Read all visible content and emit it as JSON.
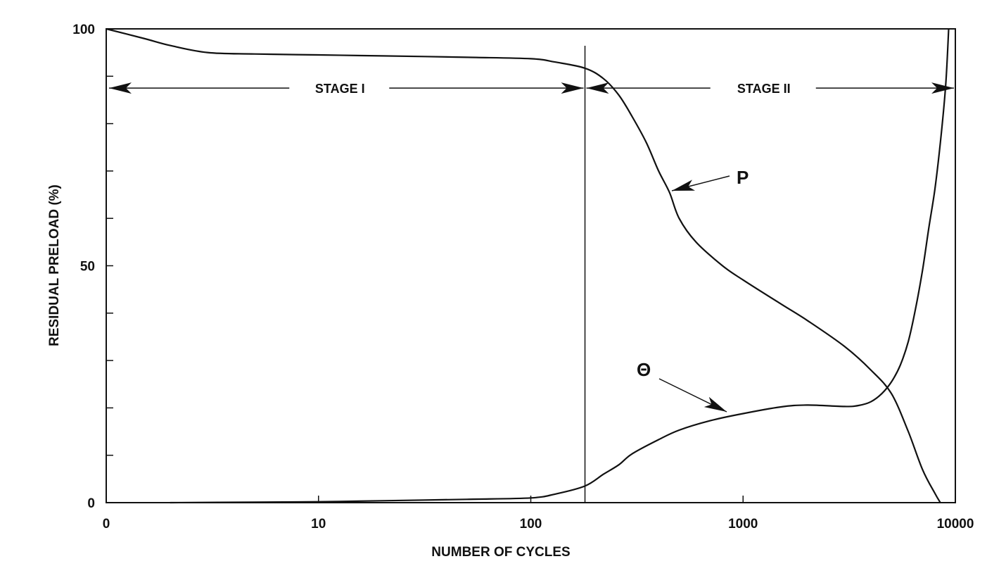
{
  "chart_data": {
    "type": "line",
    "xlabel": "NUMBER OF CYCLES",
    "ylabel": "RESIDUAL PRELOAD (%)",
    "x_scale": "log",
    "x_tick_labels": [
      "0",
      "10",
      "100",
      "1000",
      "10000"
    ],
    "x_tick_values": [
      1,
      10,
      100,
      1000,
      10000
    ],
    "y_tick_labels": [
      "0",
      "50",
      "100"
    ],
    "y_tick_values": [
      0,
      50,
      100
    ],
    "xlim": [
      1,
      10000
    ],
    "ylim": [
      0,
      100
    ],
    "grid": false,
    "series": [
      {
        "name": "P",
        "x": [
          1,
          1.5,
          2,
          3,
          5,
          10,
          20,
          50,
          100,
          130,
          180,
          220,
          260,
          300,
          350,
          400,
          450,
          500,
          600,
          800,
          1000,
          1500,
          2000,
          3000,
          4000,
          5000,
          6000,
          7000,
          8000,
          8500
        ],
        "y": [
          100,
          98,
          96.5,
          95,
          94.7,
          94.5,
          94.3,
          94,
          93.7,
          93,
          91.7,
          89.5,
          86,
          81.5,
          76,
          70,
          65.5,
          60,
          55,
          50,
          47,
          42,
          38.5,
          33,
          28,
          23,
          15,
          7,
          2,
          0
        ]
      },
      {
        "name": "Θ",
        "x": [
          2,
          5,
          10,
          20,
          50,
          100,
          130,
          180,
          220,
          260,
          300,
          400,
          500,
          700,
          1000,
          1500,
          2000,
          3000,
          3500,
          4000,
          4500,
          5000,
          5500,
          6000,
          6500,
          7000,
          7500,
          8000,
          8500,
          9000,
          9300
        ],
        "y": [
          0,
          0.1,
          0.2,
          0.4,
          0.7,
          1,
          1.8,
          3.5,
          6,
          8,
          10.3,
          13.3,
          15.3,
          17.3,
          18.8,
          20.2,
          20.6,
          20.3,
          20.5,
          21.3,
          23,
          25.5,
          29,
          34,
          41,
          49,
          58,
          66,
          76,
          88,
          100
        ]
      }
    ],
    "divider_x": 180,
    "stage_arrow_y": 87.5,
    "annotations": [
      "STAGE I",
      "STAGE II",
      "P",
      "Θ"
    ]
  }
}
